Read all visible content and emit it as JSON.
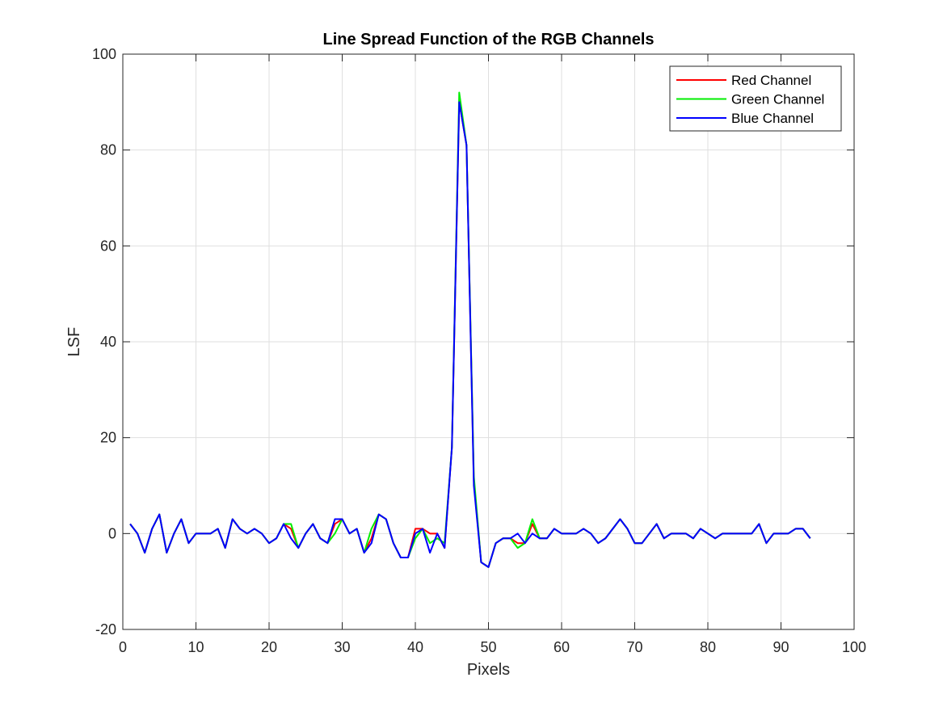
{
  "chart_data": {
    "type": "line",
    "title": "Line Spread Function of the RGB Channels",
    "xlabel": "Pixels",
    "ylabel": "LSF",
    "xlim": [
      0,
      100
    ],
    "ylim": [
      -20,
      100
    ],
    "xticks": [
      0,
      10,
      20,
      30,
      40,
      50,
      60,
      70,
      80,
      90,
      100
    ],
    "yticks": [
      -20,
      0,
      20,
      40,
      60,
      80,
      100
    ],
    "grid": true,
    "legend_position": "top-right",
    "x": [
      1,
      2,
      3,
      4,
      5,
      6,
      7,
      8,
      9,
      10,
      11,
      12,
      13,
      14,
      15,
      16,
      17,
      18,
      19,
      20,
      21,
      22,
      23,
      24,
      25,
      26,
      27,
      28,
      29,
      30,
      31,
      32,
      33,
      34,
      35,
      36,
      37,
      38,
      39,
      40,
      41,
      42,
      43,
      44,
      45,
      46,
      47,
      48,
      49,
      50,
      51,
      52,
      53,
      54,
      55,
      56,
      57,
      58,
      59,
      60,
      61,
      62,
      63,
      64,
      65,
      66,
      67,
      68,
      69,
      70,
      71,
      72,
      73,
      74,
      75,
      76,
      77,
      78,
      79,
      80,
      81,
      82,
      83,
      84,
      85,
      86,
      87,
      88,
      89,
      90,
      91,
      92,
      93,
      94
    ],
    "series": [
      {
        "name": "Red Channel",
        "color": "#ff0000",
        "values": [
          2,
          0,
          -4,
          1,
          4,
          -4,
          0,
          3,
          -2,
          0,
          0,
          0,
          1,
          -3,
          3,
          1,
          0,
          1,
          0,
          -2,
          -1,
          2,
          1,
          -3,
          0,
          2,
          -1,
          -2,
          2,
          3,
          0,
          1,
          -4,
          -1,
          4,
          3,
          -2,
          -5,
          -5,
          1,
          1,
          0,
          0,
          -3,
          18,
          90,
          81,
          11,
          -6,
          -7,
          -2,
          -1,
          -1,
          -2,
          -2,
          2,
          -1,
          -1,
          1,
          0,
          0,
          0,
          1,
          0,
          -2,
          -1,
          1,
          3,
          1,
          -2,
          -2,
          0,
          2,
          -1,
          0,
          0,
          0,
          -1,
          1,
          0,
          -1,
          0,
          0,
          0,
          0,
          0,
          2,
          -2,
          0,
          0,
          0,
          1,
          1,
          -1
        ]
      },
      {
        "name": "Green Channel",
        "color": "#00ee00",
        "values": [
          2,
          0,
          -4,
          1,
          4,
          -4,
          0,
          3,
          -2,
          0,
          0,
          0,
          1,
          -3,
          3,
          1,
          0,
          1,
          0,
          -2,
          -1,
          2,
          2,
          -3,
          0,
          2,
          -1,
          -2,
          0,
          3,
          0,
          1,
          -4,
          1,
          4,
          3,
          -2,
          -5,
          -5,
          -1,
          1,
          -2,
          -1,
          -2,
          18,
          92,
          81,
          12,
          -6,
          -7,
          -2,
          -1,
          -1,
          -3,
          -2,
          3,
          -1,
          -1,
          1,
          0,
          0,
          0,
          1,
          0,
          -2,
          -1,
          1,
          3,
          1,
          -2,
          -2,
          0,
          2,
          -1,
          0,
          0,
          0,
          -1,
          1,
          0,
          -1,
          0,
          0,
          0,
          0,
          0,
          2,
          -2,
          0,
          0,
          0,
          1,
          1,
          -1
        ]
      },
      {
        "name": "Blue Channel",
        "color": "#0000ff",
        "values": [
          2,
          0,
          -4,
          1,
          4,
          -4,
          0,
          3,
          -2,
          0,
          0,
          0,
          1,
          -3,
          3,
          1,
          0,
          1,
          0,
          -2,
          -1,
          2,
          -1,
          -3,
          0,
          2,
          -1,
          -2,
          3,
          3,
          0,
          1,
          -4,
          -2,
          4,
          3,
          -2,
          -5,
          -5,
          0,
          1,
          -4,
          0,
          -3,
          18,
          90,
          81,
          10,
          -6,
          -7,
          -2,
          -1,
          -1,
          0,
          -2,
          0,
          -1,
          -1,
          1,
          0,
          0,
          0,
          1,
          0,
          -2,
          -1,
          1,
          3,
          1,
          -2,
          -2,
          0,
          2,
          -1,
          0,
          0,
          0,
          -1,
          1,
          0,
          -1,
          0,
          0,
          0,
          0,
          0,
          2,
          -2,
          0,
          0,
          0,
          1,
          1,
          -1
        ]
      }
    ]
  }
}
